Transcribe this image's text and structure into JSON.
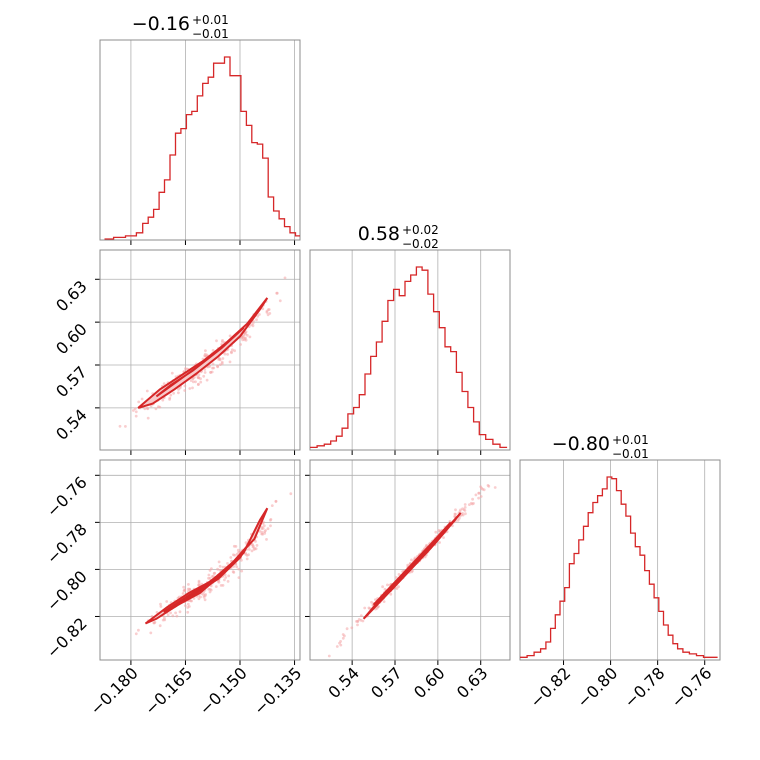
{
  "figure": {
    "type": "corner-plot",
    "accent_color": "#d62728",
    "grid": true
  },
  "chart_data": [
    {
      "type": "histogram",
      "panel": "1d-param-1",
      "title_main": "−0.16",
      "title_sup": "+0.01",
      "title_sub": "−0.01",
      "xlim": [
        -0.1885,
        -0.1335
      ],
      "x": [
        -0.186,
        -0.1835,
        -0.1795,
        -0.1775,
        -0.176,
        -0.1745,
        -0.173,
        -0.1715,
        -0.17,
        -0.1685,
        -0.167,
        -0.1655,
        -0.164,
        -0.1625,
        -0.161,
        -0.1595,
        -0.158,
        -0.1565,
        -0.155,
        -0.1535,
        -0.152,
        -0.1505,
        -0.149,
        -0.1475,
        -0.146,
        -0.1445,
        -0.143,
        -0.1415,
        -0.14,
        -0.1385,
        -0.137,
        -0.1355,
        -0.134
      ],
      "counts": [
        0,
        1,
        2,
        4,
        10,
        14,
        19,
        30,
        38,
        54,
        68,
        71,
        80,
        82,
        92,
        100,
        104,
        113,
        113,
        117,
        105,
        105,
        82,
        73,
        62,
        61,
        52,
        27,
        18,
        13,
        8,
        4,
        2
      ]
    },
    {
      "type": "histogram",
      "panel": "1d-param-2",
      "title_main": "0.58",
      "title_sup": "+0.02",
      "title_sub": "−0.02",
      "xlim": [
        0.5105,
        0.6505
      ],
      "x": [
        0.513,
        0.518,
        0.523,
        0.527,
        0.531,
        0.535,
        0.539,
        0.543,
        0.547,
        0.551,
        0.555,
        0.559,
        0.563,
        0.567,
        0.571,
        0.575,
        0.579,
        0.583,
        0.587,
        0.591,
        0.595,
        0.599,
        0.603,
        0.607,
        0.611,
        0.615,
        0.619,
        0.623,
        0.627,
        0.631,
        0.636,
        0.641,
        0.646
      ],
      "counts": [
        1,
        2,
        3,
        5,
        8,
        13,
        22,
        26,
        34,
        47,
        58,
        67,
        80,
        93,
        100,
        96,
        105,
        109,
        114,
        112,
        97,
        86,
        76,
        64,
        61,
        48,
        36,
        26,
        17,
        9,
        6,
        3,
        1
      ]
    },
    {
      "type": "histogram",
      "panel": "1d-param-3",
      "title_main": "−0.80",
      "title_sup": "+0.01",
      "title_sub": "−0.01",
      "xlim": [
        -0.8385,
        -0.7535
      ],
      "x": [
        -0.837,
        -0.834,
        -0.831,
        -0.8285,
        -0.8265,
        -0.8245,
        -0.8225,
        -0.8205,
        -0.8185,
        -0.8165,
        -0.8145,
        -0.8125,
        -0.8105,
        -0.8085,
        -0.8065,
        -0.8045,
        -0.8025,
        -0.8005,
        -0.7985,
        -0.7965,
        -0.7945,
        -0.7925,
        -0.7905,
        -0.7885,
        -0.7865,
        -0.7845,
        -0.7825,
        -0.7805,
        -0.7785,
        -0.7765,
        -0.7745,
        -0.7725,
        -0.7705,
        -0.768,
        -0.765,
        -0.762,
        -0.759,
        -0.756
      ],
      "counts": [
        1,
        2,
        4,
        6,
        10,
        18,
        26,
        34,
        42,
        56,
        62,
        70,
        78,
        86,
        92,
        96,
        100,
        107,
        106,
        99,
        91,
        84,
        74,
        66,
        61,
        52,
        44,
        36,
        28,
        20,
        14,
        9,
        6,
        4,
        3,
        2,
        1,
        1
      ]
    },
    {
      "type": "scatter-contour",
      "panel": "2d-param-1-vs-param-2",
      "xlim": [
        -0.1885,
        -0.1335
      ],
      "ylim": [
        0.5105,
        0.6505
      ],
      "ridge": [
        [
          -0.183,
          0.525
        ],
        [
          -0.178,
          0.538
        ],
        [
          -0.172,
          0.549
        ],
        [
          -0.166,
          0.559
        ],
        [
          -0.16,
          0.569
        ],
        [
          -0.154,
          0.581
        ],
        [
          -0.148,
          0.594
        ],
        [
          -0.142,
          0.61
        ],
        [
          -0.136,
          0.634
        ]
      ],
      "ridge_halfwidth": 0.0045,
      "contours": [
        [
          [
            -0.178,
            0.54
          ],
          [
            -0.172,
            0.553
          ],
          [
            -0.166,
            0.563
          ],
          [
            -0.16,
            0.573
          ],
          [
            -0.154,
            0.585
          ],
          [
            -0.148,
            0.599
          ],
          [
            -0.1425,
            0.617
          ],
          [
            -0.1445,
            0.609
          ],
          [
            -0.15,
            0.59
          ],
          [
            -0.156,
            0.576
          ],
          [
            -0.162,
            0.564
          ],
          [
            -0.168,
            0.553
          ],
          [
            -0.174,
            0.543
          ]
        ],
        [
          [
            -0.173,
            0.548
          ],
          [
            -0.167,
            0.559
          ],
          [
            -0.161,
            0.57
          ],
          [
            -0.155,
            0.582
          ],
          [
            -0.149,
            0.596
          ],
          [
            -0.151,
            0.592
          ],
          [
            -0.157,
            0.578
          ],
          [
            -0.163,
            0.566
          ],
          [
            -0.169,
            0.556
          ]
        ]
      ]
    },
    {
      "type": "scatter-contour",
      "panel": "2d-param-1-vs-param-3",
      "xlim": [
        -0.1885,
        -0.1335
      ],
      "ylim": [
        -0.8385,
        -0.7535
      ],
      "ridge": [
        [
          -0.183,
          -0.832
        ],
        [
          -0.177,
          -0.824
        ],
        [
          -0.171,
          -0.818
        ],
        [
          -0.165,
          -0.813
        ],
        [
          -0.159,
          -0.807
        ],
        [
          -0.153,
          -0.8
        ],
        [
          -0.147,
          -0.79
        ],
        [
          -0.141,
          -0.778
        ],
        [
          -0.136,
          -0.763
        ]
      ],
      "ridge_halfwidth": 0.0028,
      "contours": [
        [
          [
            -0.176,
            -0.823
          ],
          [
            -0.17,
            -0.816
          ],
          [
            -0.164,
            -0.81
          ],
          [
            -0.158,
            -0.805
          ],
          [
            -0.152,
            -0.797
          ],
          [
            -0.146,
            -0.787
          ],
          [
            -0.1425,
            -0.774
          ],
          [
            -0.1445,
            -0.779
          ],
          [
            -0.149,
            -0.793
          ],
          [
            -0.155,
            -0.802
          ],
          [
            -0.161,
            -0.81
          ],
          [
            -0.167,
            -0.815
          ],
          [
            -0.173,
            -0.821
          ]
        ],
        [
          [
            -0.171,
            -0.818
          ],
          [
            -0.165,
            -0.812
          ],
          [
            -0.159,
            -0.806
          ],
          [
            -0.153,
            -0.799
          ],
          [
            -0.148,
            -0.79
          ],
          [
            -0.15,
            -0.795
          ],
          [
            -0.156,
            -0.804
          ],
          [
            -0.162,
            -0.81
          ],
          [
            -0.168,
            -0.816
          ]
        ]
      ]
    },
    {
      "type": "scatter-contour",
      "panel": "2d-param-2-vs-param-3",
      "xlim": [
        0.5105,
        0.6505
      ],
      "ylim": [
        -0.8385,
        -0.7535
      ],
      "ridge": [
        [
          0.524,
          -0.837
        ],
        [
          0.537,
          -0.827
        ],
        [
          0.551,
          -0.818
        ],
        [
          0.565,
          -0.809
        ],
        [
          0.579,
          -0.8
        ],
        [
          0.593,
          -0.791
        ],
        [
          0.607,
          -0.782
        ],
        [
          0.621,
          -0.773
        ],
        [
          0.635,
          -0.764
        ],
        [
          0.646,
          -0.758
        ]
      ],
      "ridge_halfwidth": 0.0012,
      "contours": [
        [
          [
            0.548,
            -0.821
          ],
          [
            0.562,
            -0.811
          ],
          [
            0.576,
            -0.802
          ],
          [
            0.59,
            -0.793
          ],
          [
            0.604,
            -0.784
          ],
          [
            0.616,
            -0.776
          ],
          [
            0.612,
            -0.779
          ],
          [
            0.598,
            -0.789
          ],
          [
            0.584,
            -0.798
          ],
          [
            0.57,
            -0.807
          ],
          [
            0.556,
            -0.816
          ]
        ],
        [
          [
            0.555,
            -0.815
          ],
          [
            0.569,
            -0.806
          ],
          [
            0.583,
            -0.797
          ],
          [
            0.597,
            -0.788
          ],
          [
            0.609,
            -0.78
          ],
          [
            0.595,
            -0.791
          ],
          [
            0.581,
            -0.8
          ],
          [
            0.567,
            -0.809
          ]
        ]
      ]
    }
  ],
  "axes": {
    "param_1_ticks": [
      {
        "value": -0.18,
        "label": "−0.180"
      },
      {
        "value": -0.165,
        "label": "−0.165"
      },
      {
        "value": -0.15,
        "label": "−0.150"
      },
      {
        "value": -0.135,
        "label": "−0.135"
      }
    ],
    "param_2_ticks": [
      {
        "value": 0.54,
        "label": "0.54"
      },
      {
        "value": 0.57,
        "label": "0.57"
      },
      {
        "value": 0.6,
        "label": "0.60"
      },
      {
        "value": 0.63,
        "label": "0.63"
      }
    ],
    "param_3_ticks": [
      {
        "value": -0.82,
        "label": "−0.82"
      },
      {
        "value": -0.8,
        "label": "−0.80"
      },
      {
        "value": -0.78,
        "label": "−0.78"
      },
      {
        "value": -0.76,
        "label": "−0.76"
      }
    ]
  }
}
